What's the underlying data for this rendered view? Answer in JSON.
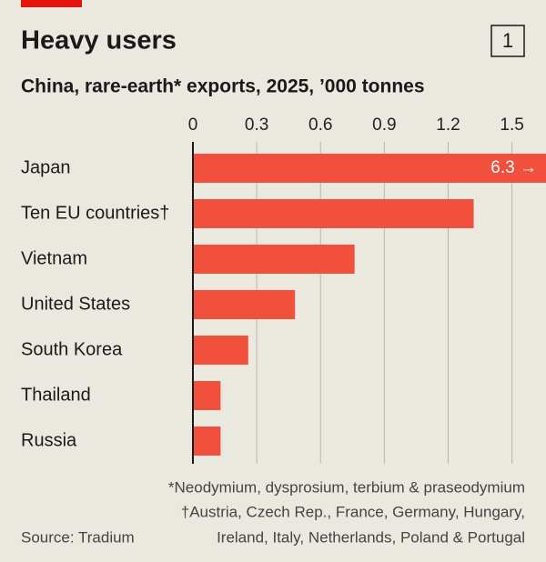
{
  "chart_data": {
    "type": "bar",
    "orientation": "horizontal",
    "title": "Heavy users",
    "figure_number": "1",
    "subtitle": "China, rare-earth* exports, 2025, ’000 tonnes",
    "categories": [
      "Japan",
      "Ten EU countries†",
      "Vietnam",
      "United States",
      "South Korea",
      "Thailand",
      "Russia"
    ],
    "values": [
      6.3,
      1.32,
      0.76,
      0.48,
      0.26,
      0.13,
      0.13
    ],
    "value_labels": [
      "6.3 →",
      null,
      null,
      null,
      null,
      null,
      null
    ],
    "color": "#f0503c",
    "xlim": [
      0,
      1.66
    ],
    "xticks": [
      0,
      0.3,
      0.6,
      0.9,
      1.2,
      1.5
    ],
    "grid": true,
    "footnotes": [
      "*Neodymium, dysprosium, terbium & praseodymium",
      "†Austria, Czech Rep., France, Germany, Hungary,",
      "Ireland, Italy, Netherlands, Poland & Portugal"
    ],
    "source": "Source: Tradium"
  }
}
